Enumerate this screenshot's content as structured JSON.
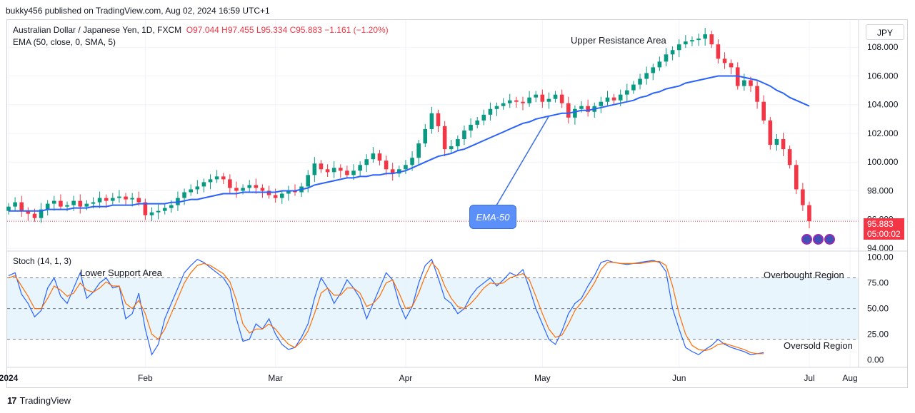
{
  "header": {
    "publisher_line": "bukky456 published on TradingView.com, Aug 02, 2024 16:59 UTC+1"
  },
  "legend": {
    "symbol": "Australian Dollar / Japanese Yen, 1D, FXCM",
    "ohlc": "O97.044 H97.455 L95.334 C95.883 −1.161 (−1.20%)",
    "ema": "EMA (50, close, 0, SMA, 5)",
    "stoch": "Stoch (14, 1, 3)"
  },
  "currency_button": "JPY",
  "price_tag": {
    "price": "95.883",
    "countdown": "05:00:02"
  },
  "annotations": {
    "upper_resistance": "Upper Resistance Area",
    "lower_support": "Lower Support Area",
    "overbought": "Overbought Region",
    "oversold": "Oversold Region",
    "ema_callout": "EMA-50"
  },
  "footer": {
    "brand": "TradingView"
  },
  "colors": {
    "up": "#089981",
    "down": "#f23645",
    "ema": "#2962ff",
    "stoch_k": "#2962ff",
    "stoch_d": "#ff6d00",
    "band": "#e3f2fd"
  },
  "chart_data": [
    {
      "type": "candlestick",
      "title": "Australian Dollar / Japanese Yen, 1D, FXCM",
      "y_axis": {
        "ticks": [
          "108.000",
          "106.000",
          "104.000",
          "102.000",
          "100.000",
          "98.000",
          "96.000",
          "94.000"
        ],
        "range": [
          93.9,
          109.8
        ]
      },
      "x_axis": {
        "labels": [
          "2024",
          "Feb",
          "Mar",
          "Apr",
          "May",
          "Jun",
          "Jul",
          "Aug"
        ]
      },
      "last_close": 95.883,
      "close": [
        96.9,
        97.2,
        96.6,
        96.4,
        96.1,
        96.7,
        97.1,
        97.3,
        96.9,
        97.0,
        97.3,
        96.9,
        97.1,
        97.2,
        97.5,
        97.3,
        97.5,
        97.6,
        97.4,
        97.5,
        97.2,
        96.3,
        96.5,
        96.6,
        96.8,
        97.0,
        97.5,
        97.9,
        98.1,
        98.3,
        98.6,
        98.8,
        99.0,
        98.8,
        98.2,
        98.0,
        98.2,
        98.4,
        98.2,
        98.0,
        97.7,
        97.5,
        97.8,
        98.0,
        97.9,
        98.3,
        99.1,
        99.9,
        99.5,
        99.3,
        99.6,
        99.4,
        99.1,
        99.4,
        99.8,
        100.2,
        100.6,
        100.1,
        99.5,
        99.2,
        99.5,
        99.8,
        100.3,
        101.3,
        102.3,
        103.4,
        102.5,
        100.9,
        101.1,
        101.6,
        102.2,
        102.6,
        102.9,
        103.3,
        103.7,
        103.9,
        104.1,
        104.3,
        104.2,
        104.1,
        104.5,
        104.7,
        104.2,
        104.4,
        104.7,
        104.1,
        103.1,
        103.7,
        103.9,
        103.5,
        103.9,
        104.2,
        104.5,
        104.3,
        104.7,
        105.0,
        105.4,
        105.8,
        106.2,
        106.6,
        107.0,
        107.5,
        107.8,
        108.2,
        108.4,
        108.5,
        108.6,
        108.9,
        108.2,
        107.2,
        106.9,
        106.6,
        105.3,
        105.7,
        105.3,
        104.2,
        102.9,
        101.2,
        101.6,
        100.9,
        99.8,
        98.1,
        97.0,
        95.883
      ],
      "ema50": [
        96.6,
        96.6,
        96.6,
        96.6,
        96.6,
        96.6,
        96.7,
        96.7,
        96.7,
        96.7,
        96.8,
        96.8,
        96.8,
        96.9,
        96.9,
        96.9,
        97.0,
        97.0,
        97.0,
        97.0,
        97.1,
        97.1,
        97.1,
        97.1,
        97.1,
        97.2,
        97.2,
        97.3,
        97.4,
        97.4,
        97.5,
        97.6,
        97.7,
        97.8,
        97.8,
        97.8,
        97.9,
        97.9,
        97.9,
        97.9,
        97.9,
        97.9,
        98.0,
        98.0,
        98.0,
        98.1,
        98.2,
        98.4,
        98.5,
        98.6,
        98.7,
        98.8,
        98.9,
        98.9,
        99.0,
        99.0,
        99.1,
        99.1,
        99.2,
        99.2,
        99.3,
        99.4,
        99.6,
        99.8,
        100.0,
        100.2,
        100.4,
        100.5,
        100.6,
        100.8,
        100.9,
        101.1,
        101.3,
        101.5,
        101.7,
        101.9,
        102.1,
        102.3,
        102.5,
        102.7,
        102.8,
        103.0,
        103.1,
        103.2,
        103.3,
        103.4,
        103.4,
        103.5,
        103.6,
        103.6,
        103.7,
        103.8,
        103.9,
        104.0,
        104.1,
        104.2,
        104.3,
        104.5,
        104.6,
        104.8,
        104.9,
        105.1,
        105.2,
        105.3,
        105.5,
        105.6,
        105.7,
        105.8,
        105.9,
        106.0,
        106.0,
        106.0,
        106.0,
        105.9,
        105.8,
        105.7,
        105.5,
        105.3,
        105.0,
        104.8,
        104.5,
        104.3,
        104.1,
        103.9
      ]
    },
    {
      "type": "line",
      "title": "Stoch (14, 1, 3)",
      "y_axis": {
        "ticks": [
          "100.00",
          "75.00",
          "50.00",
          "25.00",
          "0.00"
        ],
        "range": [
          -6,
          104
        ]
      },
      "bands": {
        "upper": 80,
        "lower": 20
      },
      "series": [
        {
          "values": [
            82,
            85,
            64,
            55,
            42,
            48,
            70,
            80,
            62,
            55,
            70,
            85,
            60,
            66,
            75,
            80,
            70,
            72,
            40,
            45,
            65,
            30,
            5,
            15,
            40,
            55,
            70,
            85,
            92,
            98,
            95,
            90,
            85,
            80,
            70,
            40,
            18,
            20,
            35,
            30,
            40,
            25,
            15,
            10,
            12,
            22,
            35,
            60,
            80,
            70,
            55,
            65,
            78,
            70,
            60,
            40,
            55,
            70,
            85,
            78,
            55,
            40,
            52,
            75,
            92,
            98,
            80,
            60,
            55,
            45,
            50,
            62,
            70,
            75,
            80,
            72,
            78,
            85,
            82,
            88,
            70,
            50,
            35,
            20,
            15,
            28,
            45,
            55,
            60,
            72,
            82,
            95,
            97,
            95,
            94,
            93,
            94,
            95,
            96,
            97,
            95,
            86,
            50,
            30,
            12,
            8,
            5,
            10,
            14,
            20,
            15,
            12,
            10,
            8,
            5,
            6,
            7
          ],
          "note": "%K values digitized approximately"
        },
        {
          "values": [
            80,
            82,
            72,
            62,
            50,
            50,
            60,
            72,
            68,
            62,
            65,
            75,
            68,
            66,
            70,
            76,
            72,
            72,
            55,
            50,
            58,
            45,
            25,
            20,
            30,
            45,
            60,
            75,
            85,
            92,
            94,
            92,
            88,
            84,
            76,
            58,
            35,
            26,
            30,
            30,
            35,
            30,
            22,
            15,
            12,
            18,
            28,
            45,
            65,
            70,
            63,
            63,
            70,
            70,
            65,
            52,
            55,
            62,
            75,
            78,
            65,
            50,
            52,
            65,
            82,
            95,
            88,
            72,
            60,
            52,
            50,
            55,
            62,
            70,
            75,
            74,
            75,
            80,
            82,
            84,
            78,
            62,
            45,
            30,
            22,
            24,
            35,
            48,
            56,
            65,
            75,
            88,
            95,
            95,
            94,
            94,
            94,
            94,
            95,
            96,
            96,
            92,
            72,
            45,
            25,
            14,
            10,
            9,
            11,
            15,
            16,
            14,
            12,
            10,
            7,
            6,
            6
          ],
          "note": "%D values digitized approximately"
        }
      ]
    }
  ]
}
